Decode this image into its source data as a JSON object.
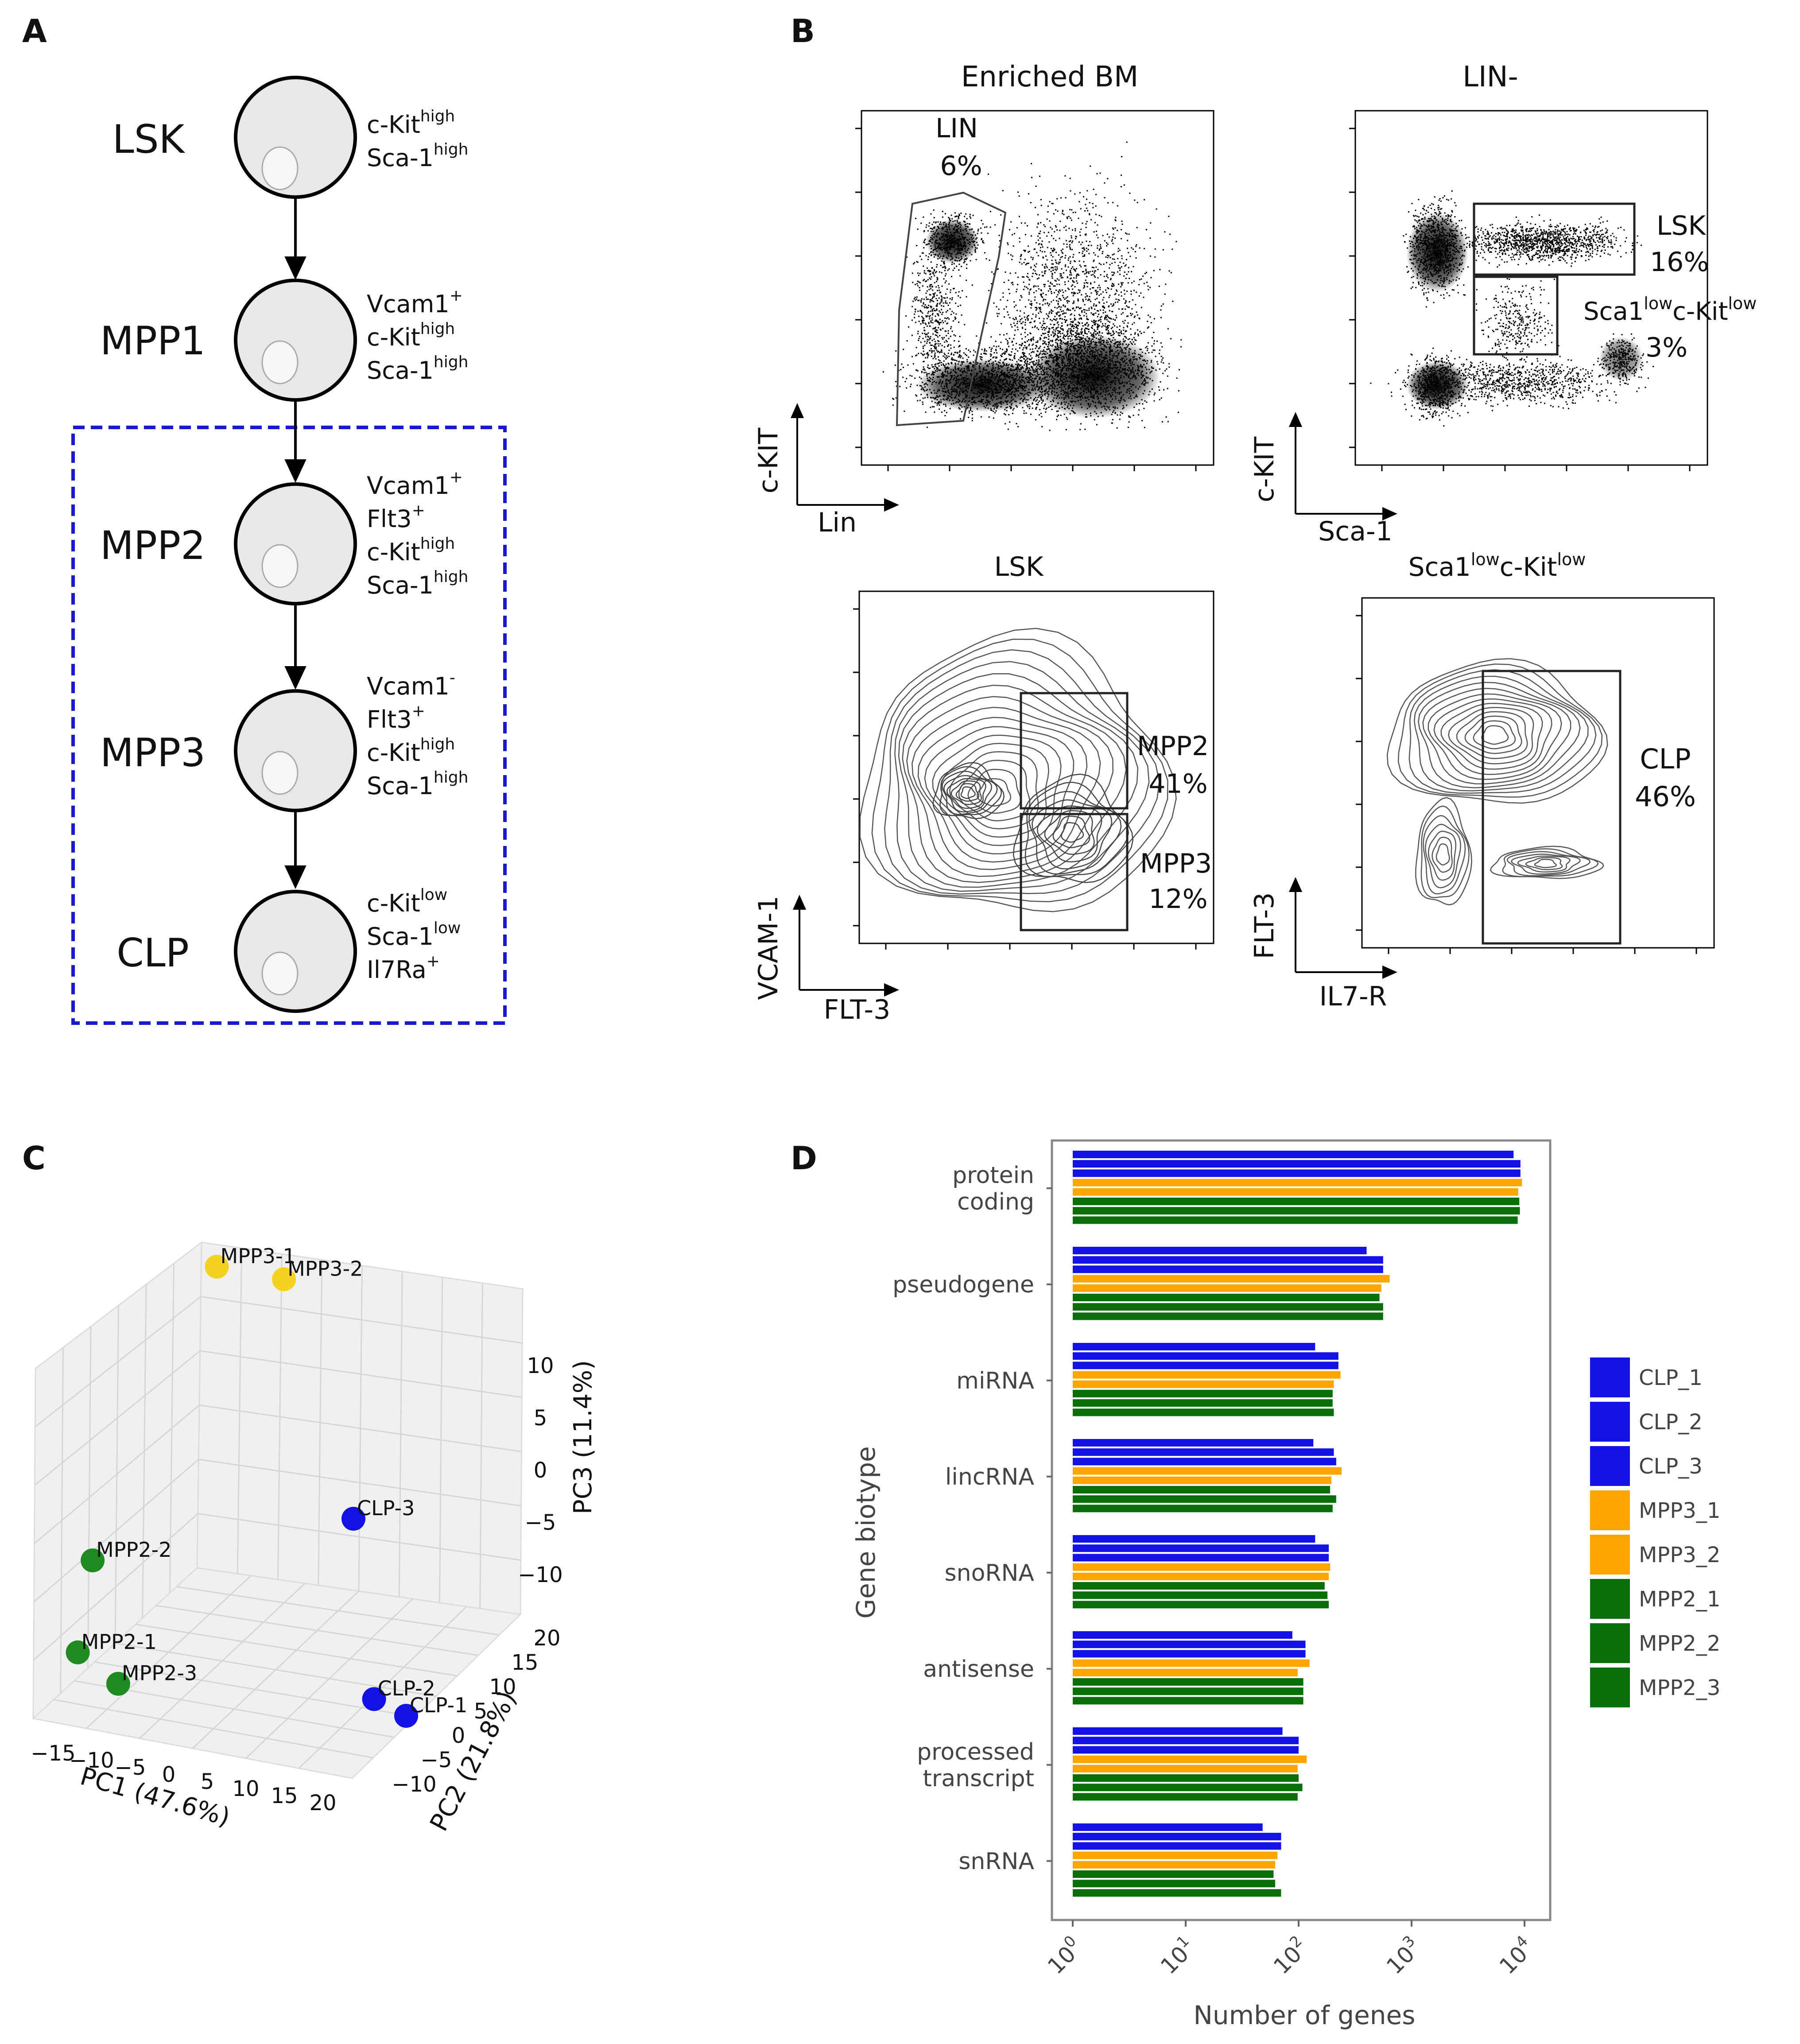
{
  "panels": {
    "A": "A",
    "B": "B",
    "C": "C",
    "D": "D"
  },
  "panel_a": {
    "cells": [
      {
        "name": "LSK",
        "markers": [
          [
            "c-Kit",
            "high"
          ],
          [
            "Sca-1",
            "high"
          ]
        ]
      },
      {
        "name": "MPP1",
        "markers": [
          [
            "Vcam1",
            "+"
          ],
          [
            "c-Kit",
            "high"
          ],
          [
            "Sca-1",
            "high"
          ]
        ]
      },
      {
        "name": "MPP2",
        "markers": [
          [
            "Vcam1",
            "+"
          ],
          [
            "Flt3",
            "+"
          ],
          [
            "c-Kit",
            "high"
          ],
          [
            "Sca-1",
            "high"
          ]
        ]
      },
      {
        "name": "MPP3",
        "markers": [
          [
            "Vcam1",
            "-"
          ],
          [
            "Flt3",
            "+"
          ],
          [
            "c-Kit",
            "high"
          ],
          [
            "Sca-1",
            "high"
          ]
        ]
      },
      {
        "name": "CLP",
        "markers": [
          [
            "c-Kit",
            "low"
          ],
          [
            "Sca-1",
            "low"
          ],
          [
            "Il7Ra",
            "+"
          ]
        ]
      }
    ],
    "box_color": "#1a1acc"
  },
  "panel_b": {
    "plots": [
      {
        "title": "Enriched BM",
        "xlabel": "Lin",
        "ylabel": "c-KIT",
        "gates": [
          {
            "name": "LIN",
            "pct": "6%"
          }
        ]
      },
      {
        "title": "LIN-",
        "xlabel": "Sca-1",
        "ylabel": "c-KIT",
        "gates": [
          {
            "name": "LSK",
            "pct": "16%"
          },
          {
            "name": "Sca1lowc-Kitlow",
            "pct": "3%"
          }
        ]
      },
      {
        "title": "LSK",
        "xlabel": "FLT-3",
        "ylabel": "VCAM-1",
        "gates": [
          {
            "name": "MPP2",
            "pct": "41%"
          },
          {
            "name": "MPP3",
            "pct": "12%"
          }
        ]
      },
      {
        "title": "Sca1lowc-Kitlow",
        "xlabel": "IL7-R",
        "ylabel": "FLT-3",
        "gates": [
          {
            "name": "CLP",
            "pct": "46%"
          }
        ]
      }
    ],
    "sup_low": "low"
  },
  "panel_c": {
    "chart_data": {
      "type": "scatter",
      "title": "",
      "xlabel": "PC1 (47.6%)",
      "ylabel": "PC2 (21.8%)",
      "zlabel": "PC3 (11.4%)",
      "x_ticks": [
        "−15",
        "−10",
        "−5",
        "0",
        "5",
        "10",
        "15",
        "20"
      ],
      "y_ticks": [
        "−10",
        "−5",
        "0",
        "5",
        "10",
        "15",
        "20"
      ],
      "z_ticks": [
        "10",
        "5",
        "0",
        "−5",
        "−10"
      ],
      "points": [
        {
          "label": "MPP3-1",
          "group": "MPP3",
          "color": "#f5d21f"
        },
        {
          "label": "MPP3-2",
          "group": "MPP3",
          "color": "#f5d21f"
        },
        {
          "label": "MPP2-2",
          "group": "MPP2",
          "color": "#1f8a1f"
        },
        {
          "label": "MPP2-1",
          "group": "MPP2",
          "color": "#1f8a1f"
        },
        {
          "label": "MPP2-3",
          "group": "MPP2",
          "color": "#1f8a1f"
        },
        {
          "label": "CLP-3",
          "group": "CLP",
          "color": "#1212e6"
        },
        {
          "label": "CLP-2",
          "group": "CLP",
          "color": "#1212e6"
        },
        {
          "label": "CLP-1",
          "group": "CLP",
          "color": "#1212e6"
        }
      ]
    }
  },
  "panel_d": {
    "chart_data": {
      "type": "bar",
      "orientation": "horizontal",
      "xscale": "log",
      "xlim": [
        1,
        14000
      ],
      "xlabel": "Number of genes",
      "ylabel": "Gene biotype",
      "x_ticks": [
        {
          "base": "10",
          "exp": "0"
        },
        {
          "base": "10",
          "exp": "1"
        },
        {
          "base": "10",
          "exp": "2"
        },
        {
          "base": "10",
          "exp": "3"
        },
        {
          "base": "10",
          "exp": "4"
        }
      ],
      "categories": [
        [
          "protein",
          "coding"
        ],
        [
          "pseudogene"
        ],
        [
          "miRNA"
        ],
        [
          "lincRNA"
        ],
        [
          "snoRNA"
        ],
        [
          "antisense"
        ],
        [
          "processed",
          "transcript"
        ],
        [
          "snRNA"
        ]
      ],
      "series": [
        {
          "name": "CLP_1",
          "color": "#1212e6",
          "values": [
            8000,
            400,
            140,
            135,
            140,
            88,
            72,
            48
          ]
        },
        {
          "name": "CLP_2",
          "color": "#1212e6",
          "values": [
            9200,
            560,
            225,
            205,
            185,
            115,
            100,
            70
          ]
        },
        {
          "name": "CLP_3",
          "color": "#1212e6",
          "values": [
            9200,
            560,
            225,
            215,
            185,
            115,
            100,
            70
          ]
        },
        {
          "name": "MPP3_1",
          "color": "#ffa500",
          "values": [
            9500,
            640,
            235,
            240,
            190,
            125,
            118,
            65
          ]
        },
        {
          "name": "MPP3_2",
          "color": "#ffa500",
          "values": [
            8800,
            540,
            205,
            195,
            185,
            98,
            98,
            62
          ]
        },
        {
          "name": "MPP2_1",
          "color": "#0a6e0a",
          "values": [
            9000,
            520,
            200,
            190,
            170,
            110,
            100,
            60
          ]
        },
        {
          "name": "MPP2_2",
          "color": "#0a6e0a",
          "values": [
            9100,
            560,
            200,
            215,
            180,
            110,
            108,
            62
          ]
        },
        {
          "name": "MPP2_3",
          "color": "#0a6e0a",
          "values": [
            8700,
            560,
            205,
            200,
            185,
            110,
            98,
            70
          ]
        }
      ]
    }
  }
}
